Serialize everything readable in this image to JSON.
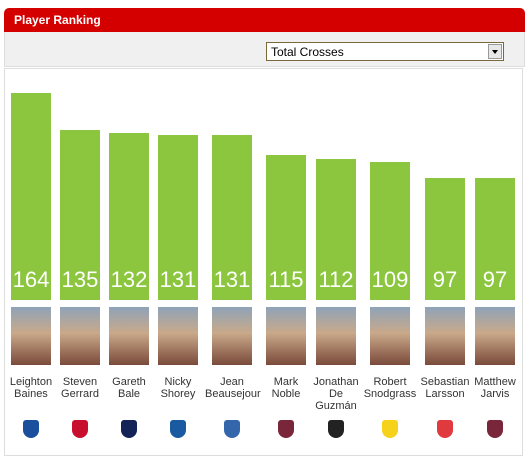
{
  "chart_data": {
    "type": "bar",
    "title": "Player Ranking",
    "selector": "Total Crosses",
    "categories": [
      "Leighton Baines",
      "Steven Gerrard",
      "Gareth Bale",
      "Nicky Shorey",
      "Jean Beausejour",
      "Mark Noble",
      "Jonathan De Guzmán",
      "Robert Snodgrass",
      "Sebastian Larsson",
      "Matthew Jarvis"
    ],
    "values": [
      164,
      135,
      132,
      131,
      131,
      115,
      112,
      109,
      97,
      97
    ],
    "color": "#8cc63f"
  }
}
